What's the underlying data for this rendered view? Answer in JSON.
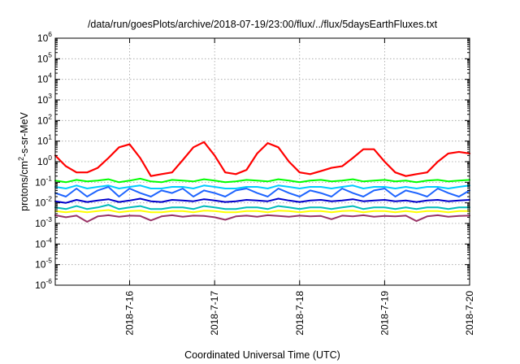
{
  "chart_data": {
    "type": "line",
    "title": "/data/run/goesPlots/archive/2018-07-19/23:00/flux/../flux/5daysEarthFluxes.txt",
    "xlabel": "Coordinated Universal Time (UTC)",
    "ylabel": "protons/cm2-s-sr-MeV",
    "ylabel_parts": {
      "a": "protons/cm",
      "sup": "2",
      "b": "-s-sr-MeV"
    },
    "y_scale": "log",
    "ylim": [
      1e-06,
      1000000.0
    ],
    "y_ticks": [
      {
        "base": "10",
        "exp": "-6",
        "value": 1e-06
      },
      {
        "base": "10",
        "exp": "-5",
        "value": 1e-05
      },
      {
        "base": "10",
        "exp": "-4",
        "value": 0.0001
      },
      {
        "base": "10",
        "exp": "-3",
        "value": 0.001
      },
      {
        "base": "10",
        "exp": "-2",
        "value": 0.01
      },
      {
        "base": "10",
        "exp": "-1",
        "value": 0.1
      },
      {
        "base": "10",
        "exp": "0",
        "value": 1
      },
      {
        "base": "10",
        "exp": "1",
        "value": 10
      },
      {
        "base": "10",
        "exp": "2",
        "value": 100
      },
      {
        "base": "10",
        "exp": "3",
        "value": 1000
      },
      {
        "base": "10",
        "exp": "4",
        "value": 10000
      },
      {
        "base": "10",
        "exp": "5",
        "value": 100000
      },
      {
        "base": "10",
        "exp": "6",
        "value": 1000000
      }
    ],
    "xlim": [
      "2018-07-15T03:00",
      "2018-07-20T00:00"
    ],
    "x_ticks": [
      "2018-7-16",
      "2018-7-17",
      "2018-7-18",
      "2018-7-19",
      "2018-7-20"
    ],
    "grid": true,
    "x": [
      "2018-07-15T03:00",
      "2018-07-15T06:00",
      "2018-07-15T09:00",
      "2018-07-15T12:00",
      "2018-07-15T15:00",
      "2018-07-15T18:00",
      "2018-07-15T21:00",
      "2018-07-16T00:00",
      "2018-07-16T03:00",
      "2018-07-16T06:00",
      "2018-07-16T09:00",
      "2018-07-16T12:00",
      "2018-07-16T15:00",
      "2018-07-16T18:00",
      "2018-07-16T21:00",
      "2018-07-17T00:00",
      "2018-07-17T03:00",
      "2018-07-17T06:00",
      "2018-07-17T09:00",
      "2018-07-17T12:00",
      "2018-07-17T15:00",
      "2018-07-17T18:00",
      "2018-07-17T21:00",
      "2018-07-18T00:00",
      "2018-07-18T03:00",
      "2018-07-18T06:00",
      "2018-07-18T09:00",
      "2018-07-18T12:00",
      "2018-07-18T15:00",
      "2018-07-18T18:00",
      "2018-07-18T21:00",
      "2018-07-19T00:00",
      "2018-07-19T03:00",
      "2018-07-19T06:00",
      "2018-07-19T09:00",
      "2018-07-19T12:00",
      "2018-07-19T15:00",
      "2018-07-19T18:00",
      "2018-07-19T21:00",
      "2018-07-20T00:00"
    ],
    "series": [
      {
        "color": "#ff0000",
        "values": [
          2.0,
          0.6,
          0.3,
          0.3,
          0.5,
          1.5,
          5.0,
          7.0,
          1.5,
          0.2,
          0.25,
          0.3,
          1.2,
          5.0,
          9.0,
          2.0,
          0.3,
          0.25,
          0.4,
          2.5,
          8.0,
          5.0,
          1.0,
          0.3,
          0.25,
          0.35,
          0.5,
          0.6,
          1.5,
          4.0,
          4.0,
          1.0,
          0.3,
          0.2,
          0.25,
          0.3,
          1.0,
          2.5,
          3.0,
          2.5
        ]
      },
      {
        "color": "#00ff00",
        "values": [
          0.12,
          0.1,
          0.13,
          0.11,
          0.12,
          0.14,
          0.1,
          0.12,
          0.15,
          0.11,
          0.1,
          0.13,
          0.12,
          0.11,
          0.14,
          0.12,
          0.1,
          0.11,
          0.13,
          0.12,
          0.11,
          0.14,
          0.12,
          0.1,
          0.12,
          0.13,
          0.11,
          0.12,
          0.14,
          0.11,
          0.12,
          0.13,
          0.11,
          0.12,
          0.1,
          0.12,
          0.13,
          0.11,
          0.12,
          0.13
        ]
      },
      {
        "color": "#00ccff",
        "values": [
          0.06,
          0.05,
          0.07,
          0.05,
          0.06,
          0.07,
          0.05,
          0.06,
          0.07,
          0.05,
          0.05,
          0.06,
          0.06,
          0.05,
          0.07,
          0.06,
          0.05,
          0.05,
          0.06,
          0.06,
          0.05,
          0.07,
          0.06,
          0.05,
          0.06,
          0.06,
          0.05,
          0.06,
          0.07,
          0.05,
          0.06,
          0.06,
          0.05,
          0.06,
          0.05,
          0.06,
          0.06,
          0.05,
          0.06,
          0.07
        ]
      },
      {
        "color": "#1e64ff",
        "values": [
          0.03,
          0.02,
          0.05,
          0.02,
          0.04,
          0.06,
          0.02,
          0.05,
          0.03,
          0.02,
          0.04,
          0.03,
          0.05,
          0.02,
          0.04,
          0.03,
          0.02,
          0.04,
          0.05,
          0.03,
          0.02,
          0.05,
          0.03,
          0.02,
          0.04,
          0.03,
          0.02,
          0.05,
          0.03,
          0.02,
          0.04,
          0.05,
          0.02,
          0.04,
          0.03,
          0.02,
          0.05,
          0.03,
          0.02,
          0.04
        ]
      },
      {
        "color": "#0000cc",
        "values": [
          0.012,
          0.01,
          0.014,
          0.011,
          0.013,
          0.015,
          0.011,
          0.013,
          0.016,
          0.012,
          0.011,
          0.014,
          0.013,
          0.012,
          0.015,
          0.013,
          0.011,
          0.012,
          0.014,
          0.013,
          0.012,
          0.016,
          0.013,
          0.011,
          0.013,
          0.014,
          0.012,
          0.013,
          0.015,
          0.012,
          0.013,
          0.014,
          0.012,
          0.013,
          0.011,
          0.013,
          0.014,
          0.012,
          0.013,
          0.014
        ]
      },
      {
        "color": "#00bbbb",
        "values": [
          0.006,
          0.005,
          0.007,
          0.005,
          0.006,
          0.008,
          0.005,
          0.006,
          0.007,
          0.005,
          0.005,
          0.006,
          0.006,
          0.005,
          0.007,
          0.006,
          0.005,
          0.005,
          0.006,
          0.006,
          0.005,
          0.007,
          0.006,
          0.005,
          0.006,
          0.006,
          0.005,
          0.006,
          0.007,
          0.005,
          0.006,
          0.006,
          0.005,
          0.006,
          0.005,
          0.006,
          0.006,
          0.005,
          0.006,
          0.006
        ]
      },
      {
        "color": "#ffff00",
        "values": [
          0.004,
          0.0035,
          0.004,
          0.0035,
          0.004,
          0.0045,
          0.0035,
          0.004,
          0.0042,
          0.0035,
          0.0035,
          0.004,
          0.004,
          0.0035,
          0.0042,
          0.004,
          0.0035,
          0.0035,
          0.004,
          0.004,
          0.0035,
          0.0042,
          0.004,
          0.0035,
          0.004,
          0.004,
          0.0035,
          0.004,
          0.0042,
          0.0035,
          0.004,
          0.004,
          0.0035,
          0.004,
          0.0035,
          0.004,
          0.004,
          0.0035,
          0.004,
          0.004
        ]
      },
      {
        "color": "#993366",
        "values": [
          0.0025,
          0.002,
          0.0024,
          0.0012,
          0.0022,
          0.0025,
          0.0021,
          0.0024,
          0.0023,
          0.0014,
          0.0022,
          0.0025,
          0.0021,
          0.0024,
          0.0023,
          0.002,
          0.0015,
          0.0022,
          0.0024,
          0.0021,
          0.0025,
          0.0023,
          0.0021,
          0.0024,
          0.0022,
          0.0023,
          0.0016,
          0.0024,
          0.0022,
          0.0025,
          0.0021,
          0.0023,
          0.0022,
          0.0024,
          0.0013,
          0.0022,
          0.0025,
          0.0021,
          0.0023,
          0.0024
        ]
      }
    ]
  }
}
